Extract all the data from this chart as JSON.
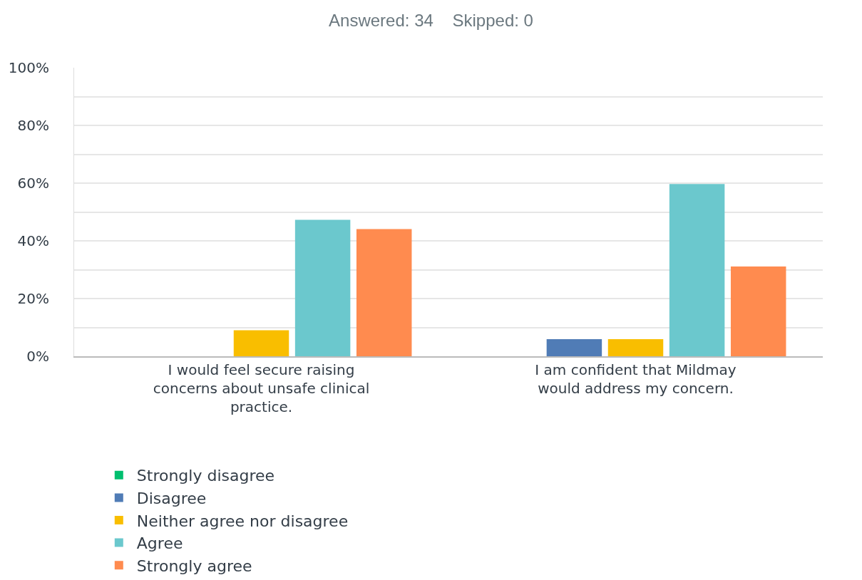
{
  "chart_data": {
    "type": "bar",
    "title": "Answered: 34    Skipped: 0",
    "categories": [
      "I would feel secure raising concerns about unsafe clinical practice.",
      "I am confident that Mildmay would address my concern."
    ],
    "series": [
      {
        "name": "Strongly disagree",
        "color": "#00bf6f",
        "values": [
          0,
          0
        ]
      },
      {
        "name": "Disagree",
        "color": "#507cb6",
        "values": [
          0,
          5.9
        ]
      },
      {
        "name": "Neither agree nor disagree",
        "color": "#f9be00",
        "values": [
          9,
          5.9
        ]
      },
      {
        "name": "Agree",
        "color": "#6bc8cd",
        "values": [
          47.3,
          59.7
        ]
      },
      {
        "name": "Strongly agree",
        "color": "#ff8b4f",
        "values": [
          44.1,
          31.1
        ]
      }
    ],
    "ylim": [
      0,
      100
    ],
    "yticks": [
      {
        "value": 0,
        "label": "0%"
      },
      {
        "value": 10,
        "label": null
      },
      {
        "value": 20,
        "label": "20%"
      },
      {
        "value": 30,
        "label": null
      },
      {
        "value": 40,
        "label": "40%"
      },
      {
        "value": 50,
        "label": null
      },
      {
        "value": 60,
        "label": "60%"
      },
      {
        "value": 70,
        "label": null
      },
      {
        "value": 80,
        "label": "80%"
      },
      {
        "value": 90,
        "label": null
      },
      {
        "value": 100,
        "label": "100%"
      }
    ],
    "grid": "y",
    "legend": "bottom"
  }
}
